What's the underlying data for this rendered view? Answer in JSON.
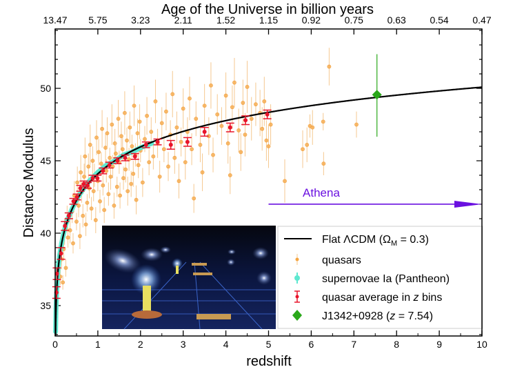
{
  "chart_data": {
    "type": "scatter",
    "xlabel": "redshift",
    "ylabel": "Distance Modulus",
    "top_axis_label": "Age of the Universe in billion years",
    "xlim": [
      0,
      10
    ],
    "ylim": [
      32.9,
      54.1
    ],
    "x_ticks": [
      "0",
      "1",
      "2",
      "3",
      "4",
      "5",
      "6",
      "7",
      "8",
      "9",
      "10"
    ],
    "y_ticks": [
      "35",
      "40",
      "45",
      "50"
    ],
    "top_ticks": [
      "13.47",
      "5.75",
      "3.23",
      "2.11",
      "1.52",
      "1.15",
      "0.92",
      "0.75",
      "0.63",
      "0.54",
      "0.47"
    ],
    "grid": false,
    "legend_placement": "bottom-right",
    "colors": {
      "quasars": "#f5a642",
      "supernovae": "#5ee8d0",
      "bins": "#e8142a",
      "j1342": "#2aa81a",
      "model": "#000000",
      "athena": "#6a10e0"
    },
    "model": {
      "name": "Flat ΛCDM (ΩM = 0.3)",
      "label_main": "Flat ΛCDM (Ω",
      "label_sub": "M",
      "label_tail": " = 0.3)",
      "omega_m": 0.3,
      "z_range": [
        0,
        10
      ]
    },
    "series": [
      {
        "name": "quasars",
        "points": [
          [
            0.35,
            40.2,
            0.9
          ],
          [
            0.4,
            41.5,
            0.8
          ],
          [
            0.42,
            39.3,
            0.7
          ],
          [
            0.45,
            42.6,
            1.0
          ],
          [
            0.5,
            40.8,
            0.6
          ],
          [
            0.52,
            43.5,
            1.1
          ],
          [
            0.55,
            41.9,
            0.8
          ],
          [
            0.58,
            39.8,
            0.9
          ],
          [
            0.6,
            44.2,
            1.2
          ],
          [
            0.62,
            42.8,
            0.7
          ],
          [
            0.65,
            41.2,
            0.8
          ],
          [
            0.68,
            43.9,
            0.9
          ],
          [
            0.7,
            45.3,
            1.3
          ],
          [
            0.72,
            40.6,
            0.8
          ],
          [
            0.75,
            42.1,
            0.6
          ],
          [
            0.78,
            44.6,
            0.9
          ],
          [
            0.8,
            43.1,
            0.7
          ],
          [
            0.82,
            46.1,
            1.4
          ],
          [
            0.85,
            41.7,
            0.8
          ],
          [
            0.88,
            45.0,
            1.0
          ],
          [
            0.9,
            42.9,
            0.7
          ],
          [
            0.92,
            44.0,
            0.8
          ],
          [
            0.95,
            40.9,
            0.9
          ],
          [
            0.97,
            46.6,
            1.2
          ],
          [
            1.0,
            43.6,
            0.7
          ],
          [
            1.02,
            45.6,
            0.9
          ],
          [
            1.05,
            42.2,
            0.8
          ],
          [
            1.08,
            44.8,
            0.8
          ],
          [
            1.1,
            47.2,
            1.3
          ],
          [
            1.12,
            43.3,
            0.7
          ],
          [
            1.15,
            41.6,
            0.9
          ],
          [
            1.18,
            45.9,
            1.0
          ],
          [
            1.2,
            44.3,
            0.8
          ],
          [
            1.22,
            46.9,
            1.1
          ],
          [
            1.25,
            42.7,
            0.8
          ],
          [
            1.28,
            45.2,
            0.7
          ],
          [
            1.3,
            43.9,
            0.9
          ],
          [
            1.33,
            47.5,
            1.4
          ],
          [
            1.35,
            44.6,
            0.8
          ],
          [
            1.38,
            41.9,
            0.9
          ],
          [
            1.4,
            46.2,
            1.0
          ],
          [
            1.42,
            45.5,
            0.8
          ],
          [
            1.45,
            43.2,
            0.7
          ],
          [
            1.48,
            47.9,
            1.3
          ],
          [
            1.5,
            44.9,
            0.8
          ],
          [
            1.52,
            42.6,
            0.9
          ],
          [
            1.55,
            46.7,
            1.0
          ],
          [
            1.58,
            45.8,
            0.8
          ],
          [
            1.6,
            43.8,
            0.8
          ],
          [
            1.63,
            48.3,
            1.5
          ],
          [
            1.65,
            44.4,
            0.9
          ],
          [
            1.68,
            46.4,
            0.9
          ],
          [
            1.7,
            42.9,
            1.0
          ],
          [
            1.73,
            45.1,
            0.8
          ],
          [
            1.75,
            47.3,
            1.1
          ],
          [
            1.78,
            43.4,
            0.9
          ],
          [
            1.8,
            46.0,
            0.8
          ],
          [
            1.83,
            44.1,
            0.9
          ],
          [
            1.85,
            48.8,
            1.4
          ],
          [
            1.88,
            45.4,
            0.8
          ],
          [
            1.9,
            42.3,
            1.0
          ],
          [
            1.93,
            46.9,
            1.0
          ],
          [
            1.95,
            44.7,
            0.9
          ],
          [
            1.98,
            47.7,
            1.2
          ],
          [
            2.0,
            45.7,
            0.8
          ],
          [
            2.05,
            43.5,
            1.0
          ],
          [
            2.1,
            46.5,
            0.9
          ],
          [
            2.15,
            48.1,
            1.3
          ],
          [
            2.2,
            44.9,
            0.9
          ],
          [
            2.25,
            47.0,
            1.0
          ],
          [
            2.3,
            45.3,
            0.9
          ],
          [
            2.35,
            49.1,
            1.5
          ],
          [
            2.4,
            46.2,
            1.0
          ],
          [
            2.45,
            43.9,
            1.1
          ],
          [
            2.5,
            47.6,
            1.1
          ],
          [
            2.55,
            45.8,
            0.9
          ],
          [
            2.6,
            48.4,
            1.3
          ],
          [
            2.65,
            44.6,
            1.0
          ],
          [
            2.7,
            46.8,
            1.0
          ],
          [
            2.75,
            49.6,
            1.6
          ],
          [
            2.8,
            45.2,
            1.1
          ],
          [
            2.85,
            47.3,
            1.1
          ],
          [
            2.9,
            43.6,
            1.2
          ],
          [
            2.95,
            46.3,
            1.0
          ],
          [
            3.0,
            48.6,
            1.4
          ],
          [
            3.05,
            44.9,
            1.2
          ],
          [
            3.1,
            47.0,
            1.0
          ],
          [
            3.15,
            49.3,
            1.5
          ],
          [
            3.2,
            45.8,
            1.1
          ],
          [
            3.25,
            42.4,
            1.0
          ],
          [
            3.3,
            47.9,
            1.2
          ],
          [
            3.4,
            46.1,
            1.2
          ],
          [
            3.45,
            44.2,
            1.3
          ],
          [
            3.5,
            48.8,
            1.5
          ],
          [
            3.6,
            46.7,
            1.3
          ],
          [
            3.65,
            50.2,
            1.6
          ],
          [
            3.7,
            45.4,
            1.2
          ],
          [
            3.8,
            48.2,
            1.4
          ],
          [
            3.9,
            47.4,
            1.3
          ],
          [
            4.0,
            49.5,
            1.6
          ],
          [
            4.05,
            46.2,
            1.4
          ],
          [
            4.1,
            44.0,
            1.3
          ],
          [
            4.15,
            48.7,
            1.5
          ],
          [
            4.2,
            50.4,
            1.7
          ],
          [
            4.3,
            47.1,
            1.5
          ],
          [
            4.35,
            45.6,
            1.3
          ],
          [
            4.4,
            49.0,
            1.6
          ],
          [
            4.45,
            46.8,
            1.5
          ],
          [
            4.5,
            50.1,
            1.8
          ],
          [
            4.6,
            47.9,
            1.5
          ],
          [
            4.7,
            48.9,
            1.5
          ],
          [
            4.8,
            48.3,
            1.6
          ],
          [
            4.85,
            47.2,
            1.5
          ],
          [
            4.9,
            49.1,
            1.7
          ],
          [
            4.95,
            46.4,
            1.4
          ],
          [
            5.0,
            46.0,
            1.5
          ],
          [
            5.05,
            47.5,
            1.4
          ],
          [
            5.38,
            43.6,
            1.5
          ],
          [
            5.8,
            45.8,
            1.3
          ],
          [
            5.9,
            46.1,
            1.2
          ],
          [
            5.97,
            47.4,
            0.8
          ],
          [
            6.03,
            47.3,
            1.2
          ],
          [
            6.28,
            47.7,
            0.6
          ],
          [
            6.29,
            44.8,
            0.8
          ],
          [
            6.42,
            51.5,
            1.3
          ],
          [
            7.06,
            47.5,
            0.9
          ],
          [
            0.12,
            37.0,
            0.6
          ],
          [
            0.15,
            38.2,
            0.7
          ],
          [
            0.2,
            38.9,
            0.8
          ],
          [
            0.25,
            37.6,
            0.6
          ],
          [
            0.3,
            39.7,
            0.7
          ],
          [
            0.22,
            40.1,
            0.9
          ],
          [
            0.28,
            41.0,
            0.9
          ],
          [
            0.18,
            36.6,
            0.5
          ]
        ]
      },
      {
        "name": "supernovae Ia (Pantheon)",
        "points": [
          [
            0.01,
            33.2
          ],
          [
            0.02,
            34.8
          ],
          [
            0.03,
            35.6
          ],
          [
            0.05,
            36.8
          ],
          [
            0.08,
            37.9
          ],
          [
            0.1,
            38.4
          ],
          [
            0.15,
            39.3
          ],
          [
            0.2,
            40.0
          ],
          [
            0.25,
            40.6
          ],
          [
            0.3,
            41.0
          ],
          [
            0.4,
            41.7
          ],
          [
            0.5,
            42.3
          ],
          [
            0.6,
            42.8
          ],
          [
            0.7,
            43.2
          ],
          [
            0.8,
            43.6
          ],
          [
            0.9,
            43.9
          ],
          [
            1.0,
            44.2
          ],
          [
            1.2,
            44.7
          ],
          [
            1.4,
            45.0
          ],
          [
            1.6,
            45.4
          ],
          [
            1.8,
            45.6
          ],
          [
            2.0,
            45.9
          ],
          [
            2.26,
            46.2
          ]
        ]
      },
      {
        "name": "quasar average in z bins",
        "points": [
          [
            0.03,
            35.9,
            0.4
          ],
          [
            0.04,
            37.2,
            0.4
          ],
          [
            0.14,
            38.6,
            0.4
          ],
          [
            0.23,
            40.5,
            0.3
          ],
          [
            0.32,
            41.2,
            0.2
          ],
          [
            0.43,
            42.2,
            0.2
          ],
          [
            0.51,
            42.5,
            0.2
          ],
          [
            0.59,
            43.1,
            0.2
          ],
          [
            0.67,
            43.4,
            0.2
          ],
          [
            0.76,
            43.3,
            0.2
          ],
          [
            0.88,
            43.8,
            0.2
          ],
          [
            0.99,
            43.8,
            0.2
          ],
          [
            1.12,
            44.3,
            0.2
          ],
          [
            1.27,
            44.7,
            0.2
          ],
          [
            1.46,
            45.0,
            0.2
          ],
          [
            1.64,
            45.2,
            0.2
          ],
          [
            1.87,
            45.3,
            0.2
          ],
          [
            2.13,
            46.1,
            0.2
          ],
          [
            2.4,
            46.3,
            0.2
          ],
          [
            2.71,
            46.1,
            0.3
          ],
          [
            3.1,
            46.3,
            0.3
          ],
          [
            3.5,
            47.0,
            0.3
          ],
          [
            4.1,
            47.3,
            0.3
          ],
          [
            4.46,
            47.8,
            0.3
          ],
          [
            4.97,
            48.2,
            0.3
          ]
        ]
      },
      {
        "name": "J1342+0928",
        "name_main": "J1342+0928 (",
        "name_z": "z",
        "name_tail": " = 7.54)",
        "z": 7.54,
        "mu": 49.56,
        "mu_err_low": 2.9,
        "mu_err_high": 2.8
      }
    ],
    "legend": {
      "quasars": "quasars",
      "supernovae": "supernovae Ia (Pantheon)",
      "bins_main": "quasar average in ",
      "bins_z": "z",
      "bins_tail": " bins"
    },
    "annotations": [
      {
        "text": "Athena",
        "arrow_from_z": 5,
        "arrow_to_z": 10,
        "mu": 42.0
      }
    ]
  }
}
